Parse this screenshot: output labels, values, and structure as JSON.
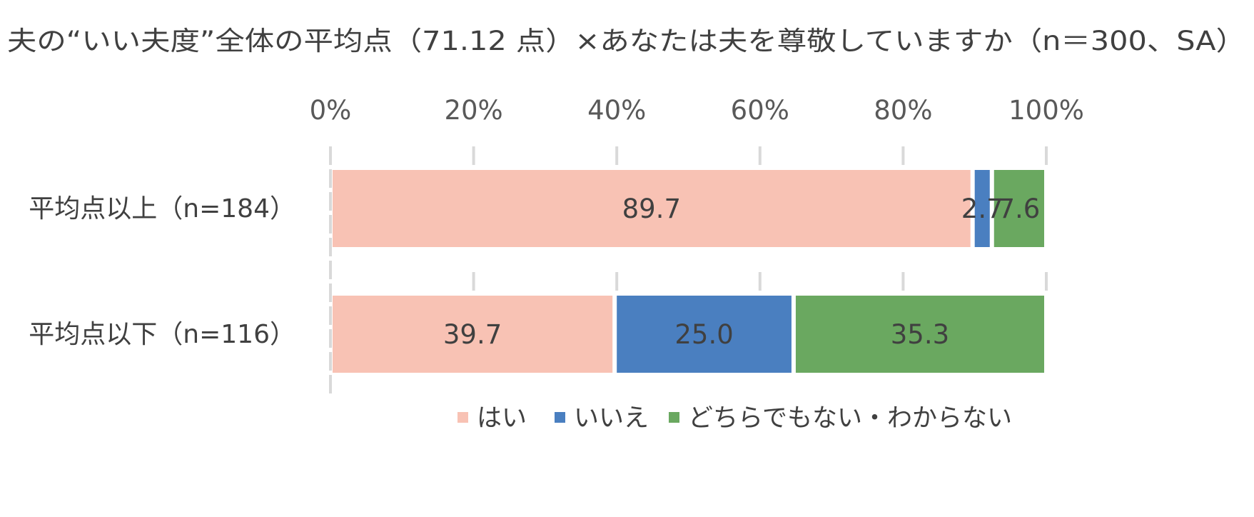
{
  "chart_data": {
    "type": "bar",
    "orientation": "horizontal",
    "stacked": true,
    "title": "夫の“いい夫度”全体の平均点（71.12 点）×あなたは夫を尊敬していますか（n＝300、SA）",
    "categories": [
      "平均点以上（n=184）",
      "平均点以下（n=116）"
    ],
    "series": [
      {
        "name": "はい",
        "color": "#F8C2B4",
        "values": [
          89.7,
          39.7
        ]
      },
      {
        "name": "いいえ",
        "color": "#4A7FC0",
        "values": [
          2.7,
          25.0
        ]
      },
      {
        "name": "どちらでもない・わからない",
        "color": "#6AA860",
        "values": [
          7.6,
          35.3
        ]
      }
    ],
    "xlim": [
      0,
      100
    ],
    "xticks": [
      0,
      20,
      40,
      60,
      80,
      100
    ],
    "xtick_labels": [
      "0%",
      "20%",
      "40%",
      "60%",
      "80%",
      "100%"
    ],
    "grid": true,
    "legend_position": "bottom",
    "axis_color": "#D9D9D9"
  }
}
